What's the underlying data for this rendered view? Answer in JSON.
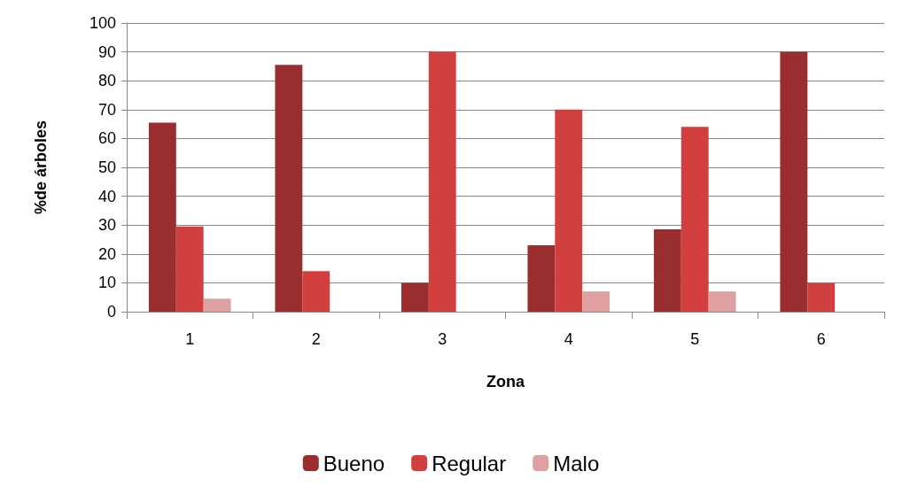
{
  "chart_data": {
    "type": "bar",
    "xlabel": "Zona",
    "ylabel": "%de árboles",
    "categories": [
      "1",
      "2",
      "3",
      "4",
      "5",
      "6"
    ],
    "series": [
      {
        "name": "Bueno",
        "color": "#9a2e2e",
        "values": [
          65.5,
          85.5,
          10,
          23,
          28.5,
          90
        ]
      },
      {
        "name": "Regular",
        "color": "#d23f3f",
        "values": [
          29.5,
          14,
          90,
          70,
          64,
          10
        ]
      },
      {
        "name": "Malo",
        "color": "#dea0a0",
        "values": [
          4.5,
          0,
          0,
          7,
          7,
          0
        ]
      }
    ],
    "ylim": [
      0,
      100
    ],
    "yticks": [
      0,
      10,
      20,
      30,
      40,
      50,
      60,
      70,
      80,
      90,
      100
    ],
    "grid": "y",
    "legend": "bottom"
  }
}
